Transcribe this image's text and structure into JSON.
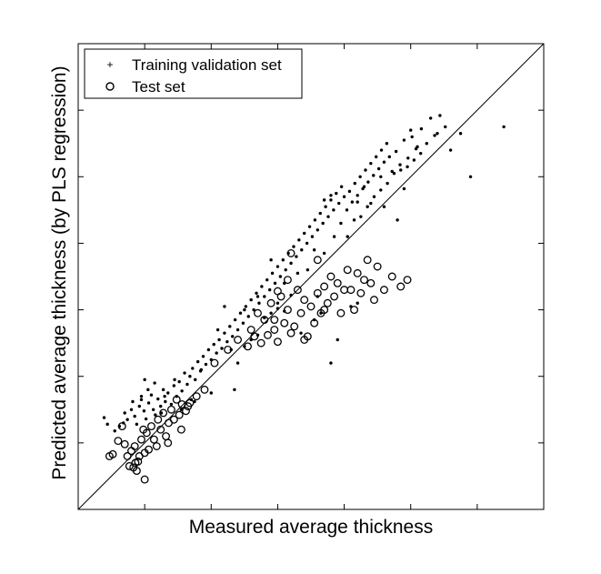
{
  "chart_data": {
    "type": "scatter",
    "title": "",
    "xlabel": "Measured average thickness",
    "ylabel": "Predicted average thickness (by PLS regression)",
    "xlim": [
      0,
      7
    ],
    "ylim": [
      0,
      7
    ],
    "tick_labels_shown": false,
    "reference_line": "y = x",
    "legend_position": "top-left",
    "grid": false,
    "series": [
      {
        "name": "Training validation set",
        "marker": "dot",
        "points": [
          [
            0.39,
            1.38
          ],
          [
            0.44,
            1.28
          ],
          [
            0.55,
            1.18
          ],
          [
            0.62,
            1.25
          ],
          [
            0.68,
            1.3
          ],
          [
            0.7,
            1.45
          ],
          [
            0.74,
            1.35
          ],
          [
            0.8,
            1.5
          ],
          [
            0.82,
            1.62
          ],
          [
            0.85,
            1.4
          ],
          [
            0.88,
            1.28
          ],
          [
            0.92,
            1.55
          ],
          [
            0.95,
            1.7
          ],
          [
            0.99,
            1.48
          ],
          [
            1.02,
            1.36
          ],
          [
            1.06,
            1.6
          ],
          [
            1.1,
            1.72
          ],
          [
            1.13,
            1.5
          ],
          [
            1.16,
            1.42
          ],
          [
            1.2,
            1.66
          ],
          [
            1.24,
            1.55
          ],
          [
            1.28,
            1.8
          ],
          [
            1.31,
            1.62
          ],
          [
            1.35,
            1.75
          ],
          [
            1.4,
            1.58
          ],
          [
            1.44,
            1.86
          ],
          [
            1.48,
            1.7
          ],
          [
            1.52,
            1.92
          ],
          [
            1.56,
            1.78
          ],
          [
            1.6,
            2.05
          ],
          [
            1.64,
            1.88
          ],
          [
            1.68,
            2.0
          ],
          [
            1.72,
            2.12
          ],
          [
            1.76,
            1.95
          ],
          [
            1.8,
            2.22
          ],
          [
            1.84,
            2.08
          ],
          [
            1.88,
            2.3
          ],
          [
            1.92,
            2.18
          ],
          [
            1.96,
            2.4
          ],
          [
            2.0,
            2.25
          ],
          [
            2.04,
            2.48
          ],
          [
            2.08,
            2.35
          ],
          [
            2.12,
            2.55
          ],
          [
            2.16,
            2.42
          ],
          [
            2.2,
            2.65
          ],
          [
            2.24,
            2.52
          ],
          [
            2.28,
            2.75
          ],
          [
            2.32,
            2.6
          ],
          [
            2.36,
            2.85
          ],
          [
            2.4,
            2.7
          ],
          [
            2.44,
            2.95
          ],
          [
            2.48,
            2.8
          ],
          [
            2.52,
            3.05
          ],
          [
            2.56,
            2.9
          ],
          [
            2.6,
            3.15
          ],
          [
            2.64,
            3.0
          ],
          [
            2.68,
            3.25
          ],
          [
            2.72,
            3.1
          ],
          [
            2.76,
            3.35
          ],
          [
            2.8,
            3.2
          ],
          [
            2.84,
            3.45
          ],
          [
            2.88,
            3.3
          ],
          [
            2.92,
            3.55
          ],
          [
            2.96,
            3.4
          ],
          [
            3.0,
            3.65
          ],
          [
            3.04,
            3.5
          ],
          [
            3.08,
            3.75
          ],
          [
            3.12,
            3.6
          ],
          [
            3.16,
            3.85
          ],
          [
            3.2,
            3.7
          ],
          [
            3.24,
            3.95
          ],
          [
            3.28,
            3.8
          ],
          [
            3.32,
            4.05
          ],
          [
            3.36,
            3.9
          ],
          [
            3.4,
            4.15
          ],
          [
            3.44,
            4.0
          ],
          [
            3.48,
            4.25
          ],
          [
            3.52,
            4.1
          ],
          [
            3.56,
            4.35
          ],
          [
            3.6,
            4.2
          ],
          [
            3.64,
            4.45
          ],
          [
            3.68,
            4.3
          ],
          [
            3.72,
            4.55
          ],
          [
            3.76,
            4.4
          ],
          [
            3.8,
            4.65
          ],
          [
            3.84,
            4.5
          ],
          [
            3.88,
            4.75
          ],
          [
            3.92,
            4.6
          ],
          [
            3.96,
            4.85
          ],
          [
            4.0,
            4.7
          ],
          [
            4.04,
            4.5
          ],
          [
            4.08,
            4.78
          ],
          [
            4.12,
            4.62
          ],
          [
            4.16,
            4.9
          ],
          [
            4.2,
            4.72
          ],
          [
            4.24,
            5.0
          ],
          [
            4.28,
            4.82
          ],
          [
            4.32,
            5.1
          ],
          [
            4.36,
            4.92
          ],
          [
            4.4,
            5.2
          ],
          [
            4.44,
            5.02
          ],
          [
            4.48,
            5.3
          ],
          [
            4.52,
            5.12
          ],
          [
            4.56,
            5.4
          ],
          [
            4.6,
            5.22
          ],
          [
            4.64,
            5.5
          ],
          [
            4.68,
            5.3
          ],
          [
            4.72,
            5.08
          ],
          [
            4.78,
            5.38
          ],
          [
            4.84,
            5.18
          ],
          [
            4.9,
            5.55
          ],
          [
            4.96,
            5.28
          ],
          [
            5.02,
            5.6
          ],
          [
            5.08,
            5.42
          ],
          [
            5.16,
            5.72
          ],
          [
            5.24,
            5.5
          ],
          [
            5.3,
            5.88
          ],
          [
            5.36,
            5.62
          ],
          [
            5.44,
            5.92
          ],
          [
            5.52,
            5.75
          ],
          [
            3.0,
            3.1
          ],
          [
            3.1,
            3.4
          ],
          [
            3.3,
            3.55
          ],
          [
            3.45,
            3.6
          ],
          [
            3.55,
            3.9
          ],
          [
            3.7,
            3.85
          ],
          [
            3.85,
            4.1
          ],
          [
            3.95,
            4.3
          ],
          [
            4.05,
            4.1
          ],
          [
            4.15,
            4.35
          ],
          [
            4.25,
            4.4
          ],
          [
            4.35,
            4.55
          ],
          [
            4.45,
            4.7
          ],
          [
            4.55,
            4.8
          ],
          [
            4.65,
            4.9
          ],
          [
            4.75,
            5.05
          ],
          [
            4.85,
            5.1
          ],
          [
            4.95,
            5.15
          ],
          [
            5.05,
            5.25
          ],
          [
            5.15,
            5.35
          ],
          [
            2.3,
            2.4
          ],
          [
            2.4,
            2.2
          ],
          [
            2.5,
            2.45
          ],
          [
            2.6,
            2.55
          ],
          [
            2.7,
            2.62
          ],
          [
            2.8,
            2.88
          ],
          [
            2.9,
            2.95
          ],
          [
            3.0,
            3.02
          ],
          [
            3.1,
            2.98
          ],
          [
            3.2,
            3.22
          ],
          [
            3.35,
            2.65
          ],
          [
            3.55,
            2.85
          ],
          [
            3.65,
            2.95
          ],
          [
            3.8,
            2.2
          ],
          [
            3.9,
            2.55
          ],
          [
            4.1,
            3.05
          ],
          [
            4.2,
            3.1
          ],
          [
            2.35,
            1.8
          ],
          [
            2.0,
            1.75
          ],
          [
            1.7,
            1.65
          ],
          [
            5.6,
            5.4
          ],
          [
            5.75,
            5.65
          ],
          [
            4.8,
            4.35
          ],
          [
            4.3,
            4.85
          ],
          [
            3.6,
            3.2
          ],
          [
            2.9,
            3.75
          ],
          [
            2.7,
            3.2
          ],
          [
            2.5,
            3.0
          ],
          [
            2.2,
            3.05
          ],
          [
            2.1,
            2.7
          ],
          [
            1.0,
            1.95
          ],
          [
            1.05,
            1.8
          ],
          [
            0.95,
            1.65
          ],
          [
            1.15,
            1.9
          ],
          [
            1.3,
            1.7
          ],
          [
            1.45,
            1.95
          ],
          [
            1.85,
            2.1
          ],
          [
            1.75,
            1.62
          ],
          [
            1.55,
            1.5
          ],
          [
            1.25,
            1.45
          ],
          [
            3.7,
            4.65
          ],
          [
            3.8,
            4.72
          ],
          [
            4.4,
            4.6
          ],
          [
            4.55,
            5.0
          ],
          [
            5.0,
            5.7
          ],
          [
            5.4,
            5.65
          ],
          [
            5.1,
            5.45
          ],
          [
            4.9,
            4.82
          ],
          [
            4.6,
            4.55
          ],
          [
            4.2,
            4.62
          ],
          [
            6.4,
            5.75
          ],
          [
            5.9,
            5.0
          ]
        ]
      },
      {
        "name": "Test set",
        "marker": "circle",
        "points": [
          [
            0.47,
            0.8
          ],
          [
            0.52,
            0.83
          ],
          [
            0.6,
            1.03
          ],
          [
            0.66,
            1.25
          ],
          [
            0.7,
            0.98
          ],
          [
            0.74,
            0.8
          ],
          [
            0.77,
            0.65
          ],
          [
            0.8,
            0.88
          ],
          [
            0.83,
            0.63
          ],
          [
            0.86,
            0.7
          ],
          [
            0.88,
            0.58
          ],
          [
            0.92,
            0.8
          ],
          [
            0.95,
            1.05
          ],
          [
            0.98,
            1.2
          ],
          [
            1.0,
            0.45
          ],
          [
            1.03,
            1.15
          ],
          [
            1.06,
            0.9
          ],
          [
            1.1,
            1.25
          ],
          [
            1.14,
            1.05
          ],
          [
            1.18,
            0.95
          ],
          [
            1.2,
            1.35
          ],
          [
            1.24,
            1.2
          ],
          [
            1.28,
            1.45
          ],
          [
            1.32,
            1.1
          ],
          [
            1.36,
            1.3
          ],
          [
            1.4,
            1.5
          ],
          [
            1.44,
            1.35
          ],
          [
            1.48,
            1.65
          ],
          [
            1.52,
            1.42
          ],
          [
            1.56,
            1.58
          ],
          [
            1.62,
            1.48
          ],
          [
            1.68,
            1.6
          ],
          [
            1.78,
            1.7
          ],
          [
            1.9,
            1.8
          ],
          [
            2.05,
            2.2
          ],
          [
            2.25,
            2.4
          ],
          [
            2.4,
            2.55
          ],
          [
            2.55,
            2.45
          ],
          [
            2.65,
            2.6
          ],
          [
            2.7,
            2.95
          ],
          [
            2.75,
            2.5
          ],
          [
            2.8,
            2.85
          ],
          [
            2.85,
            2.62
          ],
          [
            2.9,
            3.1
          ],
          [
            2.95,
            2.7
          ],
          [
            3.0,
            2.52
          ],
          [
            3.05,
            3.2
          ],
          [
            3.1,
            2.8
          ],
          [
            3.15,
            3.0
          ],
          [
            3.2,
            2.65
          ],
          [
            3.25,
            2.75
          ],
          [
            3.3,
            3.3
          ],
          [
            3.35,
            2.95
          ],
          [
            3.4,
            3.15
          ],
          [
            3.45,
            2.6
          ],
          [
            3.5,
            3.05
          ],
          [
            3.55,
            2.8
          ],
          [
            3.6,
            3.25
          ],
          [
            3.65,
            2.95
          ],
          [
            3.7,
            3.35
          ],
          [
            3.75,
            3.1
          ],
          [
            3.8,
            3.5
          ],
          [
            3.85,
            3.2
          ],
          [
            3.9,
            3.4
          ],
          [
            3.95,
            2.95
          ],
          [
            4.0,
            3.3
          ],
          [
            4.05,
            3.6
          ],
          [
            4.1,
            3.3
          ],
          [
            4.15,
            3.0
          ],
          [
            4.2,
            3.55
          ],
          [
            4.25,
            3.25
          ],
          [
            4.3,
            3.45
          ],
          [
            4.35,
            3.75
          ],
          [
            4.4,
            3.4
          ],
          [
            4.45,
            3.15
          ],
          [
            4.5,
            3.65
          ],
          [
            4.6,
            3.3
          ],
          [
            4.72,
            3.5
          ],
          [
            4.85,
            3.35
          ],
          [
            4.95,
            3.45
          ],
          [
            3.0,
            3.28
          ],
          [
            3.2,
            3.85
          ],
          [
            3.6,
            3.75
          ],
          [
            3.7,
            3.0
          ],
          [
            3.4,
            2.55
          ],
          [
            2.6,
            2.7
          ],
          [
            2.95,
            2.85
          ],
          [
            3.15,
            3.45
          ],
          [
            1.0,
            0.85
          ],
          [
            0.85,
            0.95
          ],
          [
            1.55,
            1.2
          ],
          [
            1.35,
            1.0
          ],
          [
            1.65,
            1.55
          ],
          [
            0.9,
            0.72
          ]
        ]
      }
    ]
  }
}
